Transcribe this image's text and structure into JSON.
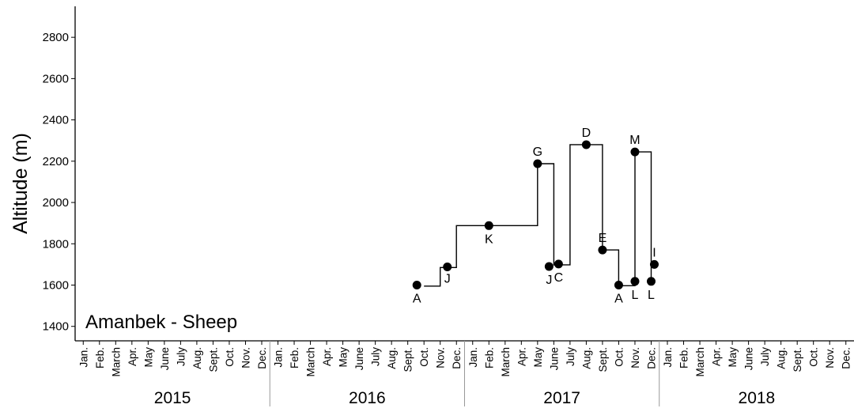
{
  "chart_data": {
    "type": "line",
    "title": "",
    "annotation": "Amanbek - Sheep",
    "ylabel": "Altitude (m)",
    "xlabel": "",
    "ylim": [
      1330,
      2950
    ],
    "yticks": [
      1400,
      1600,
      1800,
      2000,
      2200,
      2400,
      2600,
      2800
    ],
    "xlim": [
      "2015-01",
      "2018-12"
    ],
    "months": [
      "Jan.",
      "Feb.",
      "March",
      "Apr.",
      "May",
      "June",
      "July",
      "Aug.",
      "Sept.",
      "Oct.",
      "Nov.",
      "Dec."
    ],
    "years": [
      "2015",
      "2016",
      "2017",
      "2018"
    ],
    "grid": false,
    "legend": "none",
    "step_path": [
      {
        "x": "2016-10",
        "y": 1595
      },
      {
        "x": "2016-11",
        "y": 1595
      },
      {
        "x": "2016-11",
        "y": 1685
      },
      {
        "x": "2016-12",
        "y": 1685
      },
      {
        "x": "2016-12",
        "y": 1888
      },
      {
        "x": "2017-05",
        "y": 1888
      },
      {
        "x": "2017-05",
        "y": 2188
      },
      {
        "x": "2017-06",
        "y": 2188
      },
      {
        "x": "2017-06",
        "y": 1698
      },
      {
        "x": "2017-07",
        "y": 1698
      },
      {
        "x": "2017-07",
        "y": 2280
      },
      {
        "x": "2017-09",
        "y": 2280
      },
      {
        "x": "2017-09",
        "y": 1770
      },
      {
        "x": "2017-10",
        "y": 1770
      },
      {
        "x": "2017-10",
        "y": 1597
      },
      {
        "x": "2017-11",
        "y": 1597
      },
      {
        "x": "2017-11",
        "y": 2245
      },
      {
        "x": "2017-12",
        "y": 2245
      },
      {
        "x": "2017-12",
        "y": 1620
      },
      {
        "x": "2017-12",
        "y": 1700
      }
    ],
    "points": [
      {
        "x": "2016-10",
        "y": 1600,
        "label": "A"
      },
      {
        "x": "2016-11",
        "y": 1688,
        "label": "J"
      },
      {
        "x": "2017-02",
        "y": 1888,
        "label": "K"
      },
      {
        "x": "2017-05",
        "y": 2188,
        "label": "G"
      },
      {
        "x": "2017-06",
        "y": 1690,
        "label": "J"
      },
      {
        "x": "2017-06",
        "y": 1702,
        "label": "C"
      },
      {
        "x": "2017-08",
        "y": 2280,
        "label": "D"
      },
      {
        "x": "2017-09",
        "y": 1770,
        "label": "E"
      },
      {
        "x": "2017-10",
        "y": 1600,
        "label": "A"
      },
      {
        "x": "2017-11",
        "y": 1618,
        "label": "L"
      },
      {
        "x": "2017-11",
        "y": 2245,
        "label": "M"
      },
      {
        "x": "2017-12",
        "y": 1618,
        "label": "L"
      },
      {
        "x": "2017-12",
        "y": 1700,
        "label": "I"
      }
    ]
  }
}
